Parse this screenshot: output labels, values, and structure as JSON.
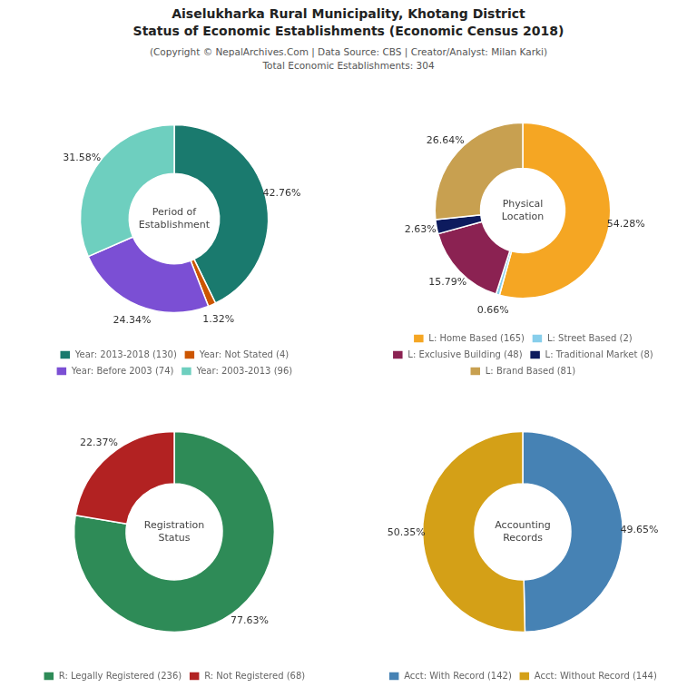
{
  "title": "Aiselukharka Rural Municipality, Khotang District\nStatus of Economic Establishments (Economic Census 2018)",
  "subtitle": "(Copyright © NepalArchives.Com | Data Source: CBS | Creator/Analyst: Milan Karki)\nTotal Economic Establishments: 304",
  "chart_data": [
    {
      "type": "doughnut",
      "title": "Period of\nEstablishment",
      "categories": [
        "Year: 2013-2018 (130)",
        "Year: Not Stated (4)",
        "Year: Before 2003 (74)",
        "Year: 2003-2013 (96)"
      ],
      "values": [
        42.76,
        1.32,
        24.34,
        31.58
      ],
      "value_labels": [
        "42.76%",
        "1.32%",
        "24.34%",
        "31.58%"
      ],
      "colors": [
        "#1a7a6e",
        "#cc5500",
        "#7b4fd4",
        "#6ecfbf"
      ],
      "data_labels": true,
      "legend": "bottom"
    },
    {
      "type": "doughnut",
      "title": "Physical\nLocation",
      "categories": [
        "L: Home Based (165)",
        "L: Street Based (2)",
        "L: Exclusive Building (48)",
        "L: Traditional Market (8)",
        "L: Brand Based (81)"
      ],
      "values": [
        54.28,
        0.66,
        15.79,
        2.63,
        26.64
      ],
      "value_labels": [
        "54.28%",
        "0.66%",
        "15.79%",
        "2.63%",
        "26.64%"
      ],
      "colors": [
        "#f5a623",
        "#87ceeb",
        "#8b2252",
        "#0d1b5e",
        "#c8a050"
      ],
      "data_labels": true,
      "legend": "bottom"
    },
    {
      "type": "doughnut",
      "title": "Registration\nStatus",
      "categories": [
        "R: Legally Registered (236)",
        "R: Not Registered (68)"
      ],
      "values": [
        77.63,
        22.37
      ],
      "value_labels": [
        "77.63%",
        "22.37%"
      ],
      "colors": [
        "#2e8b57",
        "#b22222"
      ],
      "data_labels": true,
      "legend": "bottom"
    },
    {
      "type": "doughnut",
      "title": "Accounting\nRecords",
      "categories": [
        "Acct: With Record (142)",
        "Acct: Without Record (144)"
      ],
      "values": [
        49.65,
        50.35
      ],
      "value_labels": [
        "49.65%",
        "50.35%"
      ],
      "colors": [
        "#4682b4",
        "#d4a017"
      ],
      "data_labels": true,
      "legend": "bottom"
    }
  ]
}
